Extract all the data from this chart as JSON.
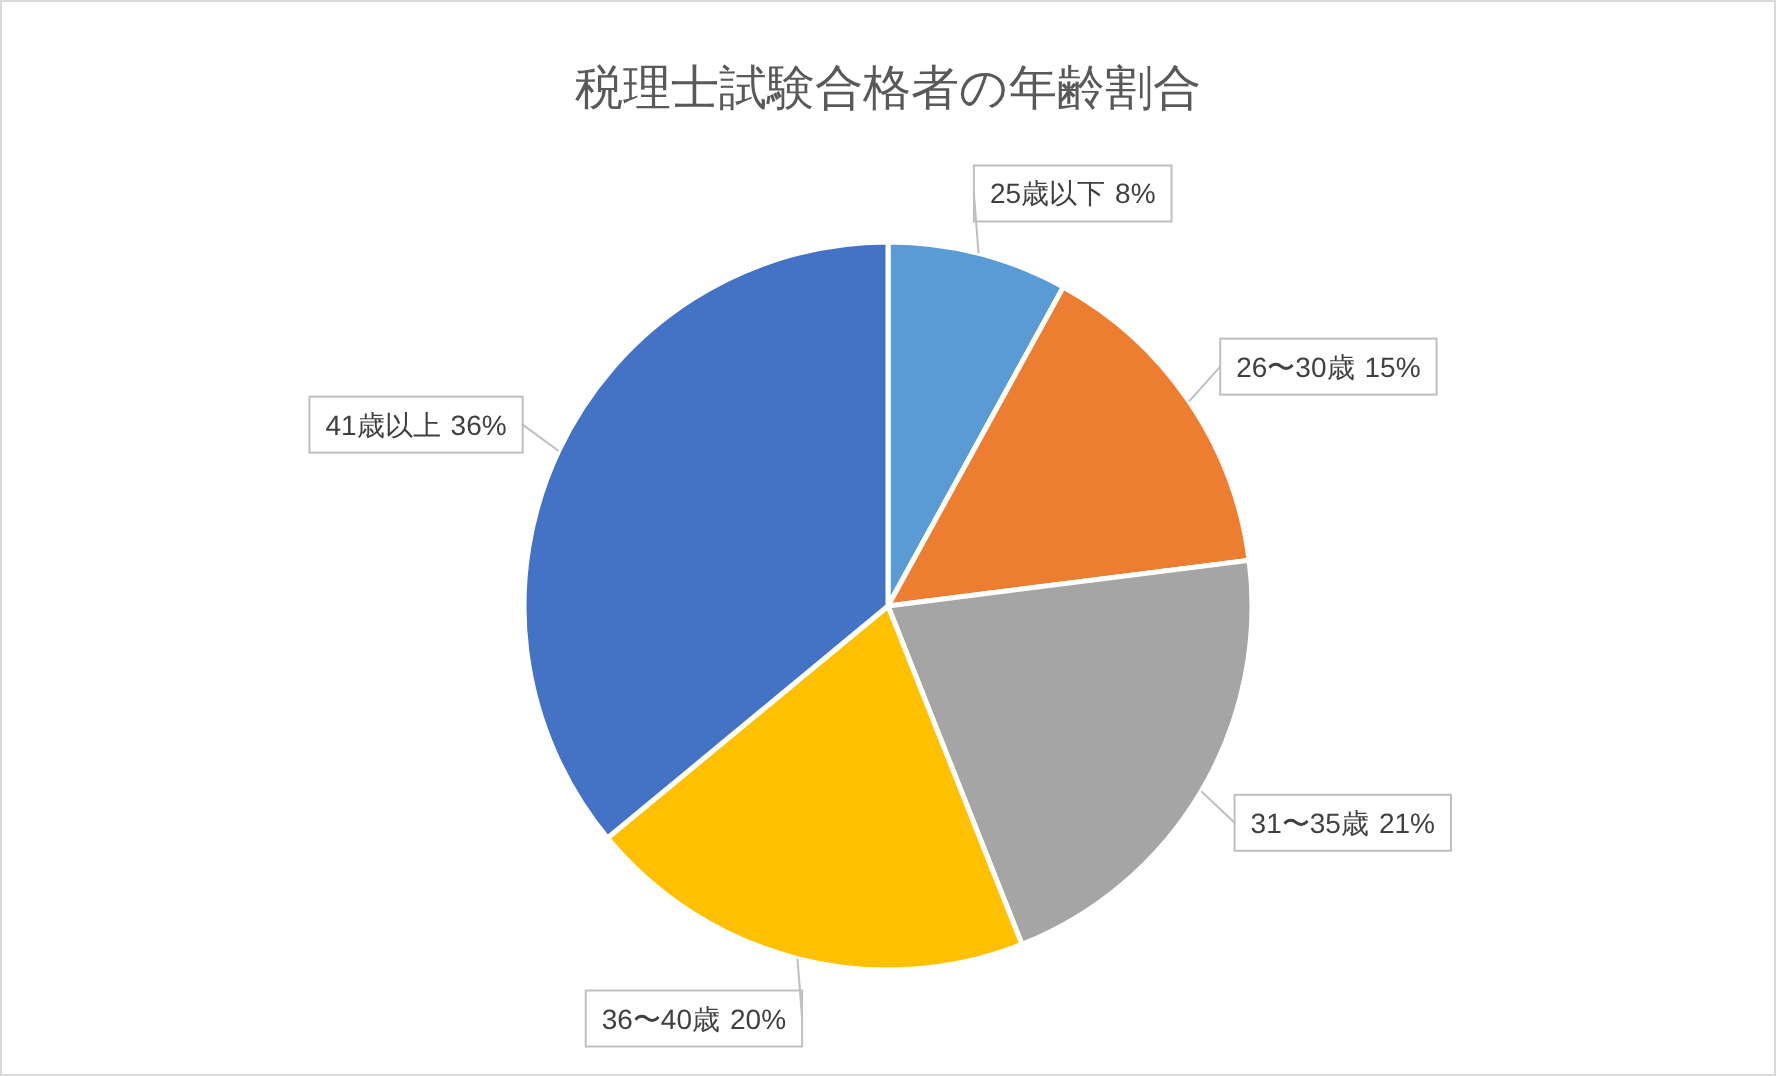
{
  "chart_data": {
    "type": "pie",
    "title": "税理士試験合格者の年齢割合",
    "categories": [
      "25歳以下",
      "26〜30歳",
      "31〜35歳",
      "36〜40歳",
      "41歳以上"
    ],
    "values": [
      8,
      15,
      21,
      20,
      36
    ],
    "colors": [
      "#5b9bd5",
      "#ed7d31",
      "#a5a5a5",
      "#ffc000",
      "#4472c4"
    ],
    "value_labels": [
      "8%",
      "15%",
      "21%",
      "20%",
      "36%"
    ]
  }
}
